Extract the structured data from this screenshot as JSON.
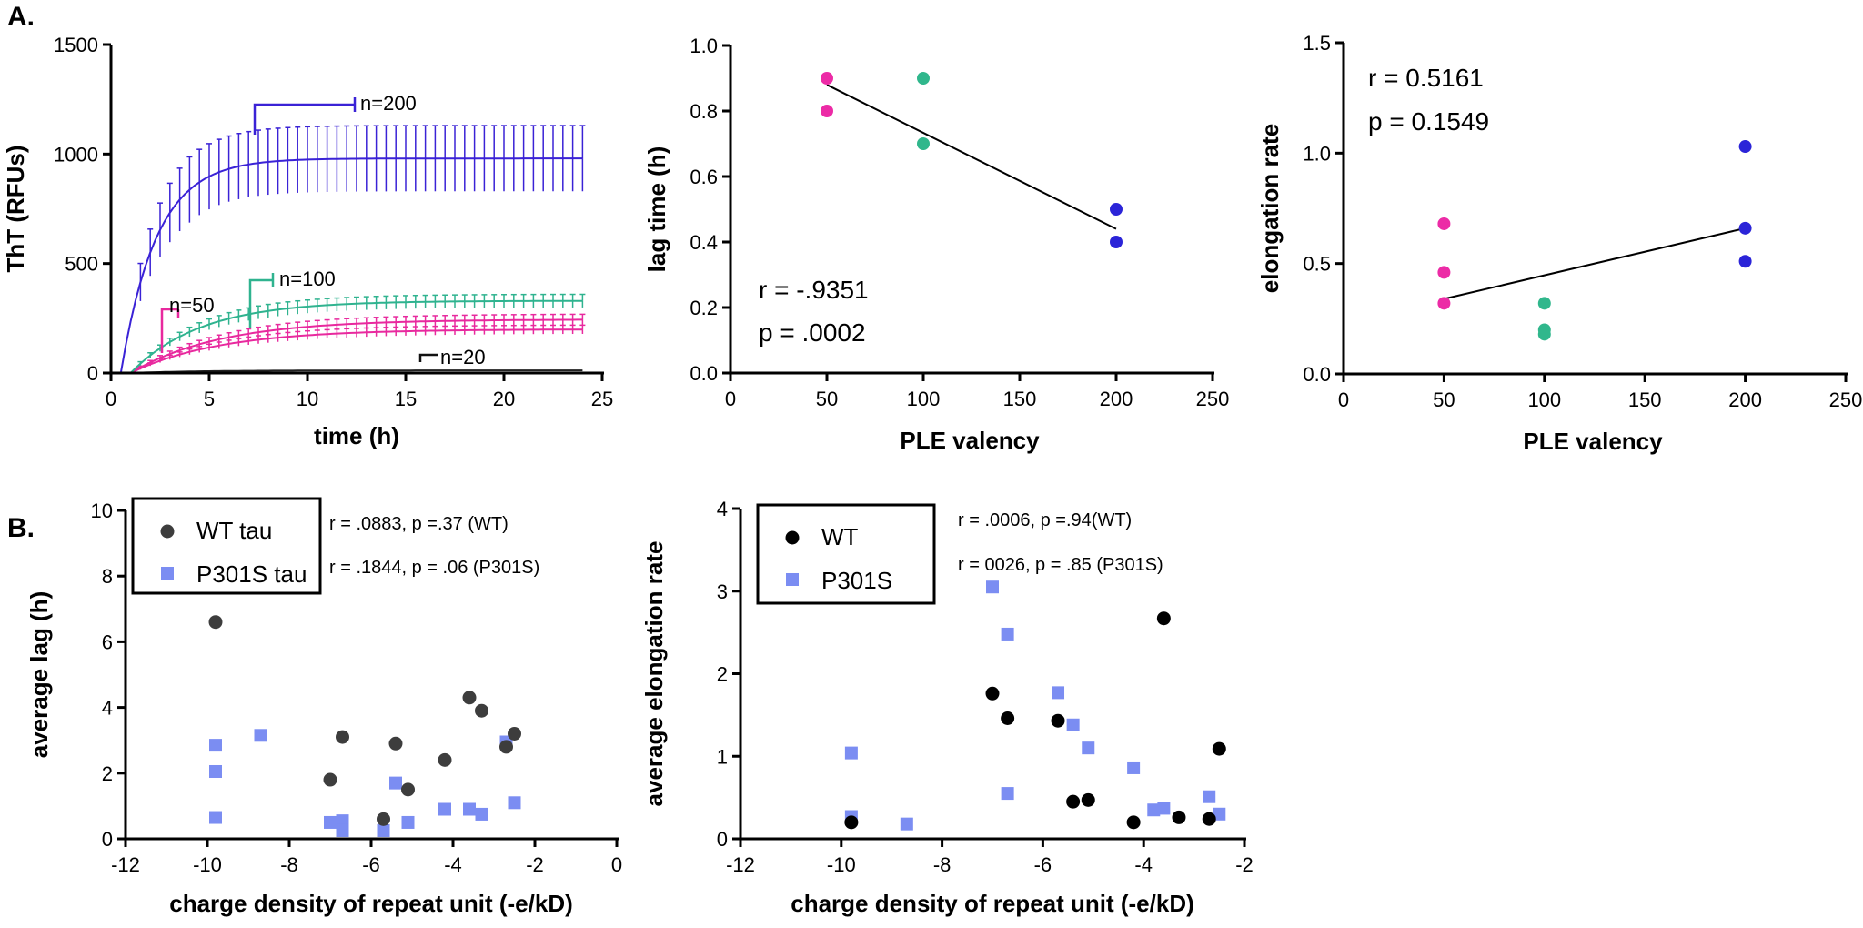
{
  "panels": {
    "a": "A.",
    "b": "B."
  },
  "colors": {
    "n200": "#3a22d6",
    "n100": "#2fb38f",
    "n50": "#e8299e",
    "n20": "#222222",
    "ple50": "#ec2ba6",
    "ple100": "#30b78c",
    "ple200": "#2b24d8",
    "wt_dark": "#3d3d3d",
    "wt_black": "#000000",
    "p301s": "#7b8df2"
  },
  "chart_data": [
    {
      "type": "line",
      "id": "tht_kinetics",
      "title": "",
      "xlabel": "time (h)",
      "ylabel": "ThT (RFUs)",
      "xlim": [
        0,
        25
      ],
      "ylim": [
        0,
        1500
      ],
      "xticks": [
        0,
        5,
        10,
        15,
        20,
        25
      ],
      "yticks": [
        0,
        500,
        1000,
        1500
      ],
      "series": [
        {
          "name": "n=200",
          "plateau": 980,
          "k": 0.55,
          "error": 150
        },
        {
          "name": "n=100",
          "plateau": 330,
          "k": 0.28,
          "error": 30
        },
        {
          "name": "n=50",
          "plateau": 245,
          "k": 0.22,
          "error": 25
        },
        {
          "name": "n=50",
          "plateau": 200,
          "k": 0.22,
          "error": 20
        },
        {
          "name": "n=20",
          "plateau": 12,
          "k": 0.3,
          "error": 5
        }
      ],
      "annotations": [
        "n=200",
        "n=100",
        "n=50",
        "n=20"
      ]
    },
    {
      "type": "scatter",
      "id": "lag_vs_valency",
      "xlabel": "PLE valency",
      "ylabel": "lag time (h)",
      "xlim": [
        0,
        250
      ],
      "ylim": [
        0,
        1.0
      ],
      "xticks": [
        0,
        50,
        100,
        150,
        200,
        250
      ],
      "yticks": [
        "0.0",
        "0.2",
        "0.4",
        "0.6",
        "0.8",
        "1.0"
      ],
      "points": [
        {
          "x": 50,
          "y": 0.9,
          "group": "50"
        },
        {
          "x": 50,
          "y": 0.8,
          "group": "50"
        },
        {
          "x": 100,
          "y": 0.9,
          "group": "100"
        },
        {
          "x": 100,
          "y": 0.7,
          "group": "100"
        },
        {
          "x": 200,
          "y": 0.5,
          "group": "200"
        },
        {
          "x": 200,
          "y": 0.4,
          "group": "200"
        }
      ],
      "fit": [
        [
          50,
          0.88
        ],
        [
          200,
          0.44
        ]
      ],
      "r_text": "r = -.9351",
      "p_text": "p = .0002"
    },
    {
      "type": "scatter",
      "id": "elongation_vs_valency",
      "xlabel": "PLE valency",
      "ylabel": "elongation rate",
      "xlim": [
        0,
        250
      ],
      "ylim": [
        0,
        1.5
      ],
      "xticks": [
        0,
        50,
        100,
        150,
        200,
        250
      ],
      "yticks": [
        "0.0",
        "0.5",
        "1.0",
        "1.5"
      ],
      "points": [
        {
          "x": 50,
          "y": 0.68,
          "group": "50"
        },
        {
          "x": 50,
          "y": 0.46,
          "group": "50"
        },
        {
          "x": 50,
          "y": 0.32,
          "group": "50"
        },
        {
          "x": 100,
          "y": 0.32,
          "group": "100"
        },
        {
          "x": 100,
          "y": 0.2,
          "group": "100"
        },
        {
          "x": 100,
          "y": 0.18,
          "group": "100"
        },
        {
          "x": 200,
          "y": 1.03,
          "group": "200"
        },
        {
          "x": 200,
          "y": 0.66,
          "group": "200"
        },
        {
          "x": 200,
          "y": 0.51,
          "group": "200"
        }
      ],
      "fit": [
        [
          50,
          0.34
        ],
        [
          200,
          0.66
        ]
      ],
      "r_text": "r = 0.5161",
      "p_text": "p = 0.1549"
    },
    {
      "type": "scatter",
      "id": "avg_lag_vs_charge",
      "xlabel": "charge density of repeat unit (-e/kD)",
      "ylabel": "average lag (h)",
      "xlim": [
        -12,
        0
      ],
      "ylim": [
        0,
        10
      ],
      "xticks": [
        -12,
        -10,
        -8,
        -6,
        -4,
        -2,
        0
      ],
      "yticks": [
        0,
        2,
        4,
        6,
        8,
        10
      ],
      "legend": [
        {
          "label": "WT tau",
          "marker": "circle"
        },
        {
          "label": "P301S tau",
          "marker": "square"
        }
      ],
      "stats": [
        "r = .0883, p =.37 (WT)",
        "r = .1844, p = .06 (P301S)"
      ],
      "series": [
        {
          "name": "WT tau",
          "points": [
            [
              -9.8,
              6.6
            ],
            [
              -7,
              1.8
            ],
            [
              -6.7,
              3.1
            ],
            [
              -5.7,
              0.6
            ],
            [
              -5.4,
              2.9
            ],
            [
              -5.1,
              1.5
            ],
            [
              -4.2,
              2.4
            ],
            [
              -3.6,
              4.3
            ],
            [
              -3.3,
              3.9
            ],
            [
              -2.7,
              2.8
            ],
            [
              -2.5,
              3.2
            ]
          ]
        },
        {
          "name": "P301S tau",
          "points": [
            [
              -9.8,
              2.85
            ],
            [
              -9.8,
              2.05
            ],
            [
              -9.8,
              0.65
            ],
            [
              -8.7,
              3.15
            ],
            [
              -7,
              0.5
            ],
            [
              -6.7,
              0.55
            ],
            [
              -6.7,
              0.25
            ],
            [
              -5.7,
              0.25
            ],
            [
              -5.4,
              1.7
            ],
            [
              -5.1,
              0.5
            ],
            [
              -4.2,
              0.9
            ],
            [
              -3.6,
              0.9
            ],
            [
              -3.3,
              0.75
            ],
            [
              -2.7,
              2.95
            ],
            [
              -2.5,
              1.1
            ]
          ]
        }
      ]
    },
    {
      "type": "scatter",
      "id": "avg_elongation_vs_charge",
      "xlabel": "charge density of repeat unit  (-e/kD)",
      "ylabel": "average elongation rate",
      "xlim": [
        -12,
        -2
      ],
      "ylim": [
        0,
        4
      ],
      "xticks": [
        -12,
        -10,
        -8,
        -6,
        -4,
        -2
      ],
      "yticks": [
        0,
        1,
        2,
        3,
        4
      ],
      "legend": [
        {
          "label": "WT",
          "marker": "circle"
        },
        {
          "label": "P301S",
          "marker": "square"
        }
      ],
      "stats": [
        "r = .0006, p =.94(WT)",
        "r = 0026, p = .85 (P301S)"
      ],
      "series": [
        {
          "name": "WT",
          "points": [
            [
              -9.8,
              0.2
            ],
            [
              -7,
              1.76
            ],
            [
              -6.7,
              1.46
            ],
            [
              -5.7,
              1.43
            ],
            [
              -5.4,
              0.45
            ],
            [
              -5.1,
              0.47
            ],
            [
              -4.2,
              0.2
            ],
            [
              -3.6,
              2.67
            ],
            [
              -3.3,
              0.26
            ],
            [
              -2.7,
              0.24
            ],
            [
              -2.5,
              1.09
            ]
          ]
        },
        {
          "name": "P301S",
          "points": [
            [
              -9.8,
              1.04
            ],
            [
              -9.8,
              0.27
            ],
            [
              -8.7,
              0.18
            ],
            [
              -7,
              3.05
            ],
            [
              -6.7,
              2.48
            ],
            [
              -6.7,
              0.55
            ],
            [
              -5.7,
              1.77
            ],
            [
              -5.4,
              1.38
            ],
            [
              -5.1,
              1.1
            ],
            [
              -4.2,
              0.86
            ],
            [
              -3.8,
              0.35
            ],
            [
              -3.6,
              0.37
            ],
            [
              -2.7,
              0.51
            ],
            [
              -2.5,
              0.3
            ]
          ]
        }
      ]
    }
  ]
}
